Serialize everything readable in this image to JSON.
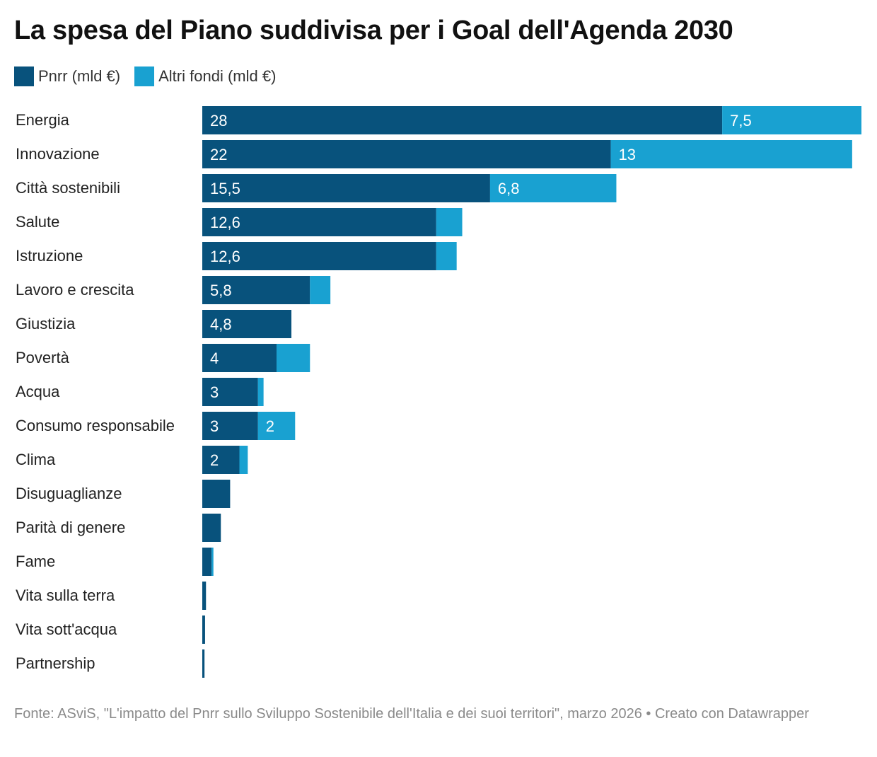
{
  "title": "La spesa del Piano suddivisa per i Goal dell'Agenda 2030",
  "legend": [
    {
      "label": "Pnrr (mld €)",
      "color": "#08527c"
    },
    {
      "label": "Altri fondi (mld €)",
      "color": "#19a1d1"
    }
  ],
  "footer": {
    "source": "Fonte: ASviS, \"L'impatto del Pnrr sullo Sviluppo Sostenibile dell'Italia e dei suoi territori\", marzo 2026",
    "separator": "•",
    "credit": "Creato con Datawrapper"
  },
  "chart_data": {
    "type": "bar",
    "orientation": "horizontal",
    "stacked": true,
    "categories": [
      "Energia",
      "Innovazione",
      "Città sostenibili",
      "Salute",
      "Istruzione",
      "Lavoro e crescita",
      "Giustizia",
      "Povertà",
      "Acqua",
      "Consumo responsabile",
      "Clima",
      "Disuguaglianze",
      "Parità di genere",
      "Fame",
      "Vita sulla terra",
      "Vita sott'acqua",
      "Partnership"
    ],
    "series": [
      {
        "name": "Pnrr (mld €)",
        "color": "#08527c",
        "values": [
          28,
          22,
          15.5,
          12.6,
          12.6,
          5.8,
          4.8,
          4,
          3,
          3,
          2,
          1.5,
          1,
          0.5,
          0.2,
          0.15,
          0.12
        ],
        "labels": [
          "28",
          "22",
          "15,5",
          "12,6",
          "12,6",
          "5,8",
          "4,8",
          "4",
          "3",
          "3",
          "2",
          "",
          "",
          "",
          "",
          "",
          ""
        ]
      },
      {
        "name": "Altri fondi (mld €)",
        "color": "#19a1d1",
        "values": [
          7.5,
          13,
          6.8,
          1.4,
          1.1,
          1.1,
          0,
          1.8,
          0.3,
          2,
          0.45,
          0,
          0,
          0.1,
          0,
          0,
          0
        ],
        "labels": [
          "7,5",
          "13",
          "6,8",
          "",
          "",
          "",
          "",
          "",
          "",
          "2",
          "",
          "",
          "",
          "",
          "",
          "",
          ""
        ]
      }
    ],
    "xlim": [
      0,
      35.5
    ],
    "grid": false,
    "legend_position": "top-left"
  }
}
